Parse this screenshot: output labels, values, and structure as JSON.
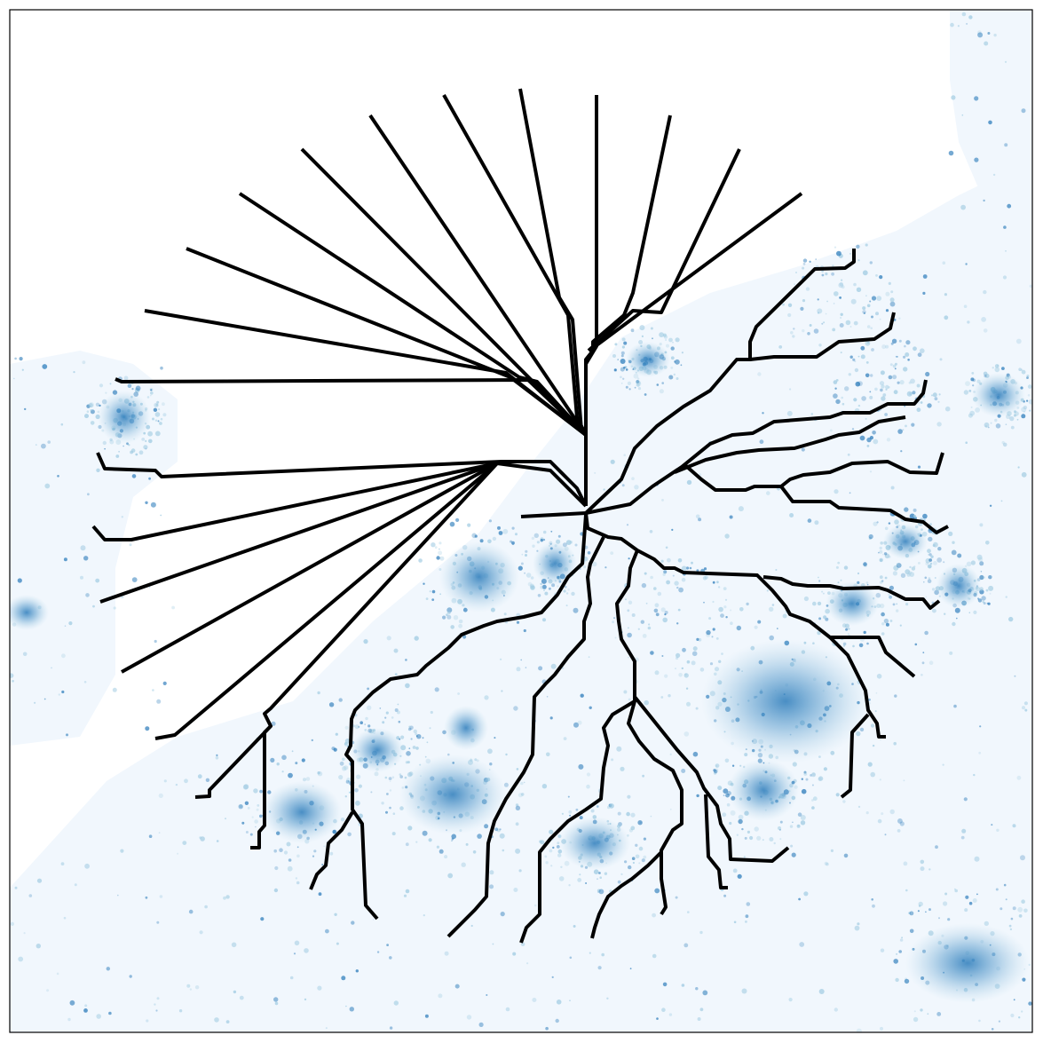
{
  "figure": {
    "kind": "route-tree-over-density-map",
    "colors": {
      "background": "#ffffff",
      "frame": "#000000",
      "route": "#000000",
      "density_light": "#eef5fc",
      "density_mid": "#9ecae1",
      "density_dark": "#2b7bba"
    },
    "grid": false,
    "ticks": false,
    "title": "",
    "xlabel": "",
    "ylabel": ""
  }
}
